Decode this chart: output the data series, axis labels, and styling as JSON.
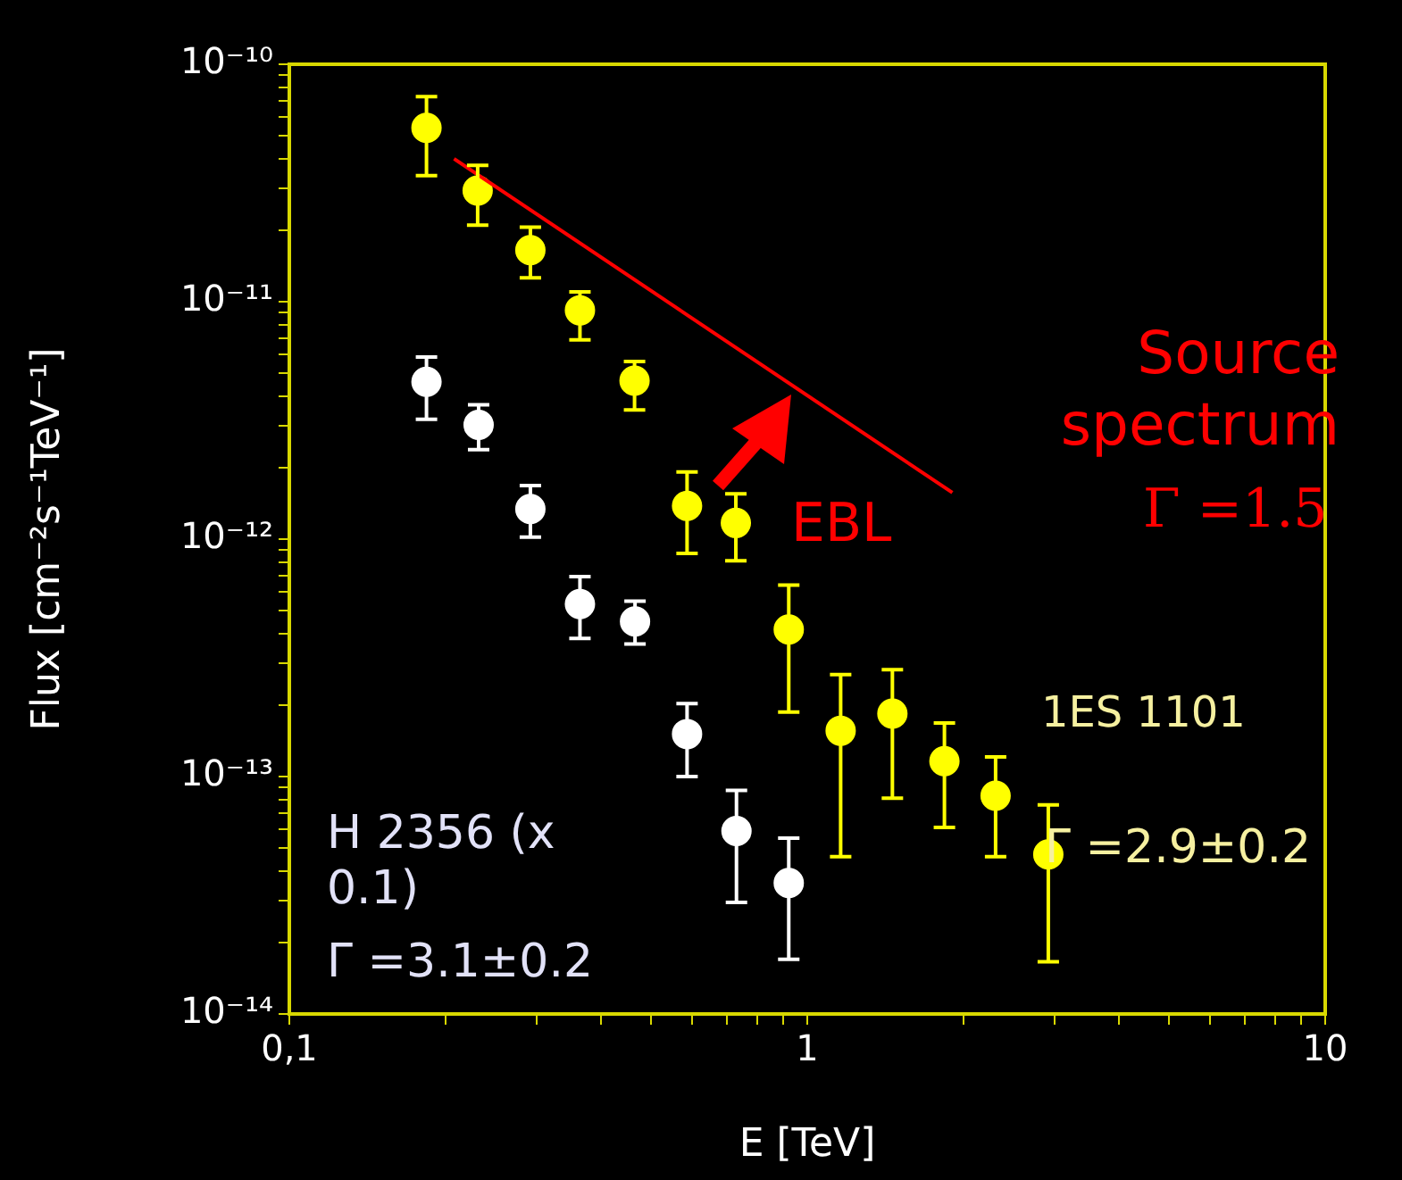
{
  "chart_data": {
    "type": "scatter",
    "xlabel": "E [TeV]",
    "ylabel": "Flux [cm⁻²s⁻¹TeV⁻¹]",
    "log": "xy",
    "grid": false,
    "legend": false,
    "marker": "circle",
    "xlim": [
      0.1,
      10
    ],
    "ylim": [
      1e-14,
      1e-10
    ],
    "xticks": [
      {
        "value": 0.1,
        "label": "0,1"
      },
      {
        "value": 0.2,
        "label": null
      },
      {
        "value": 0.3,
        "label": null
      },
      {
        "value": 0.4,
        "label": null
      },
      {
        "value": 0.5,
        "label": null
      },
      {
        "value": 0.6,
        "label": null
      },
      {
        "value": 0.7,
        "label": null
      },
      {
        "value": 0.8,
        "label": null
      },
      {
        "value": 0.9,
        "label": null
      },
      1,
      {
        "value": 2,
        "label": null
      },
      {
        "value": 3,
        "label": null
      },
      {
        "value": 4,
        "label": null
      },
      {
        "value": 5,
        "label": null
      },
      {
        "value": 6,
        "label": null
      },
      {
        "value": 7,
        "label": null
      },
      {
        "value": 8,
        "label": null
      },
      {
        "value": 9,
        "label": null
      },
      10
    ],
    "yticks": [
      {
        "value": 1e-14,
        "label": "10⁻¹⁴"
      },
      {
        "value": 2e-14,
        "label": null
      },
      {
        "value": 3e-14,
        "label": null
      },
      {
        "value": 4e-14,
        "label": null
      },
      {
        "value": 5e-14,
        "label": null
      },
      {
        "value": 6e-14,
        "label": null
      },
      {
        "value": 7e-14,
        "label": null
      },
      {
        "value": 8e-14,
        "label": null
      },
      {
        "value": 9e-14,
        "label": null
      },
      {
        "value": 1e-13,
        "label": "10⁻¹³"
      },
      {
        "value": 2e-13,
        "label": null
      },
      {
        "value": 3e-13,
        "label": null
      },
      {
        "value": 4e-13,
        "label": null
      },
      {
        "value": 5e-13,
        "label": null
      },
      {
        "value": 6e-13,
        "label": null
      },
      {
        "value": 7e-13,
        "label": null
      },
      {
        "value": 8e-13,
        "label": null
      },
      {
        "value": 9e-13,
        "label": null
      },
      {
        "value": 1e-12,
        "label": "10⁻¹²"
      },
      {
        "value": 2e-12,
        "label": null
      },
      {
        "value": 3e-12,
        "label": null
      },
      {
        "value": 4e-12,
        "label": null
      },
      {
        "value": 5e-12,
        "label": null
      },
      {
        "value": 6e-12,
        "label": null
      },
      {
        "value": 7e-12,
        "label": null
      },
      {
        "value": 8e-12,
        "label": null
      },
      {
        "value": 9e-12,
        "label": null
      },
      {
        "value": 1e-11,
        "label": "10⁻¹¹"
      },
      {
        "value": 2e-11,
        "label": null
      },
      {
        "value": 3e-11,
        "label": null
      },
      {
        "value": 4e-11,
        "label": null
      },
      {
        "value": 5e-11,
        "label": null
      },
      {
        "value": 6e-11,
        "label": null
      },
      {
        "value": 7e-11,
        "label": null
      },
      {
        "value": 8e-11,
        "label": null
      },
      {
        "value": 9e-11,
        "label": null
      },
      {
        "value": 1e-10,
        "label": "10⁻¹⁰"
      }
    ],
    "series": [
      {
        "name": "1ES 1101",
        "color": "#ffff00",
        "x": [
          0.184,
          0.231,
          0.292,
          0.364,
          0.464,
          0.586,
          0.728,
          0.921,
          1.16,
          1.46,
          1.84,
          2.31,
          2.92
        ],
        "values": [
          5.4e-11,
          2.94e-11,
          1.65e-11,
          9.2e-12,
          4.65e-12,
          1.38e-12,
          1.17e-12,
          4.16e-13,
          1.56e-13,
          1.84e-13,
          1.16e-13,
          8.3e-14,
          4.7e-14
        ],
        "errors": [
          [
            3.4e-11,
            7.3e-11
          ],
          [
            2.1e-11,
            3.75e-11
          ],
          [
            1.26e-11,
            2.06e-11
          ],
          [
            6.9e-12,
            1.1e-11
          ],
          [
            3.5e-12,
            5.6e-12
          ],
          [
            8.7e-13,
            1.92e-12
          ],
          [
            8.1e-13,
            1.55e-12
          ],
          [
            1.87e-13,
            6.4e-13
          ],
          [
            4.6e-14,
            2.69e-13
          ],
          [
            8.1e-14,
            2.82e-13
          ],
          [
            6.1e-14,
            1.68e-13
          ],
          [
            4.6e-14,
            1.21e-13
          ],
          [
            1.66e-14,
            7.6e-14
          ]
        ]
      },
      {
        "name": "H 2356 (x 0.1)",
        "color": "#ffffff",
        "x": [
          0.184,
          0.232,
          0.292,
          0.364,
          0.465,
          0.586,
          0.73,
          0.921
        ],
        "values": [
          4.6e-12,
          3.03e-12,
          1.34e-12,
          5.33e-13,
          4.5e-13,
          1.51e-13,
          5.9e-14,
          3.56e-14
        ],
        "errors": [
          [
            3.2e-12,
            5.85e-12
          ],
          [
            2.38e-12,
            3.68e-12
          ],
          [
            1.02e-12,
            1.68e-12
          ],
          [
            3.82e-13,
            6.95e-13
          ],
          [
            3.62e-13,
            5.48e-13
          ],
          [
            1e-13,
            2.03e-13
          ],
          [
            2.95e-14,
            8.75e-14
          ],
          [
            1.7e-14,
            5.5e-14
          ]
        ]
      },
      {
        "type": "line",
        "color": "#ff0000",
        "marker": "none",
        "x": [
          0.208,
          1.906
        ],
        "values": [
          4e-11,
          1.57e-12
        ]
      }
    ],
    "annotations": [
      "Source spectrum",
      "Γ =1.5",
      "EBL",
      "Γ =2.9±0.2",
      "Γ =3.1±0.2"
    ]
  }
}
